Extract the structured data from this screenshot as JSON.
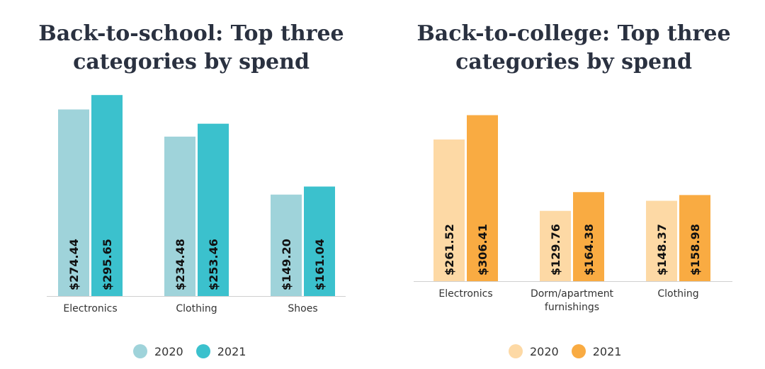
{
  "chart_data": [
    {
      "type": "bar",
      "title": "Back-to-school: Top three categories by spend",
      "title_lines": [
        "Back-to-school: Top three",
        "categories by spend"
      ],
      "categories": [
        "Electronics",
        "Clothing",
        "Shoes"
      ],
      "series": [
        {
          "name": "2020",
          "values": [
            274.44,
            234.48,
            149.2
          ],
          "labels": [
            "$274.44",
            "$234.48",
            "$149.20"
          ],
          "color": "#9fd3da"
        },
        {
          "name": "2021",
          "values": [
            295.65,
            253.46,
            161.04
          ],
          "labels": [
            "$295.65",
            "$253.46",
            "$161.04"
          ],
          "color": "#3bc1cd"
        }
      ],
      "ylim": [
        0,
        300
      ],
      "grid": false,
      "legend": "bottom"
    },
    {
      "type": "bar",
      "title": "Back-to-college: Top three categories by spend",
      "title_lines": [
        "Back-to-college: Top three",
        "categories by spend"
      ],
      "categories": [
        "Electronics",
        "Dorm/apartment furnishings",
        "Clothing"
      ],
      "category_lines": [
        [
          "Electronics"
        ],
        [
          "Dorm/apartment",
          "furnishings"
        ],
        [
          "Clothing"
        ]
      ],
      "series": [
        {
          "name": "2020",
          "values": [
            261.52,
            129.76,
            148.37
          ],
          "labels": [
            "$261.52",
            "$129.76",
            "$148.37"
          ],
          "color": "#fdd9a5"
        },
        {
          "name": "2021",
          "values": [
            306.41,
            164.38,
            158.98
          ],
          "labels": [
            "$306.41",
            "$164.38",
            "$158.98"
          ],
          "color": "#f9ab42"
        }
      ],
      "ylim": [
        0,
        300
      ],
      "grid": false,
      "legend": "bottom"
    }
  ]
}
